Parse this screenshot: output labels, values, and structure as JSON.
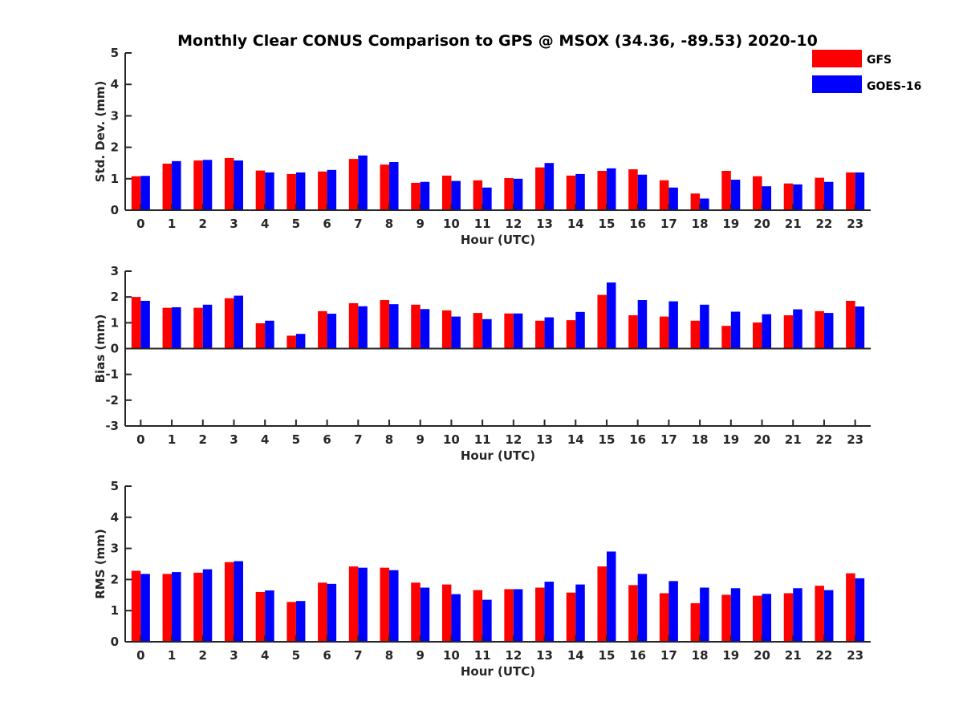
{
  "title": "Monthly Clear CONUS Comparison to GPS @ MSOX (34.36, -89.53) 2020-10",
  "colors": {
    "GFS": "#ff0000",
    "GOES-16": "#0000ff",
    "axis": "#262626"
  },
  "legend": {
    "placement": "top-right",
    "entries": [
      "GFS",
      "GOES-16"
    ]
  },
  "chart_data": [
    {
      "type": "bar",
      "xlabel": "Hour (UTC)",
      "ylabel": "Std. Dev. (mm)",
      "ylim": [
        0,
        5
      ],
      "yticks": [
        0,
        1,
        2,
        3,
        4,
        5
      ],
      "categories": [
        "0",
        "1",
        "2",
        "3",
        "4",
        "5",
        "6",
        "7",
        "8",
        "9",
        "10",
        "11",
        "12",
        "13",
        "14",
        "15",
        "16",
        "17",
        "18",
        "19",
        "20",
        "21",
        "22",
        "23"
      ],
      "series": [
        {
          "name": "GFS",
          "values": [
            1.08,
            1.48,
            1.58,
            1.66,
            1.26,
            1.15,
            1.23,
            1.63,
            1.45,
            0.87,
            1.1,
            0.95,
            1.02,
            1.36,
            1.1,
            1.25,
            1.3,
            0.95,
            0.53,
            1.25,
            1.08,
            0.85,
            1.03,
            1.2
          ]
        },
        {
          "name": "GOES-16",
          "values": [
            1.09,
            1.56,
            1.6,
            1.58,
            1.2,
            1.2,
            1.28,
            1.74,
            1.53,
            0.9,
            0.93,
            0.72,
            1.0,
            1.5,
            1.15,
            1.33,
            1.13,
            0.72,
            0.37,
            0.97,
            0.76,
            0.82,
            0.9,
            1.2
          ]
        }
      ]
    },
    {
      "type": "bar",
      "xlabel": "Hour (UTC)",
      "ylabel": "Bias (mm)",
      "ylim": [
        -3,
        3
      ],
      "yticks": [
        -3,
        -2,
        -1,
        0,
        1,
        2,
        3
      ],
      "categories": [
        "0",
        "1",
        "2",
        "3",
        "4",
        "5",
        "6",
        "7",
        "8",
        "9",
        "10",
        "11",
        "12",
        "13",
        "14",
        "15",
        "16",
        "17",
        "18",
        "19",
        "20",
        "21",
        "22",
        "23"
      ],
      "series": [
        {
          "name": "GFS",
          "values": [
            2.0,
            1.58,
            1.58,
            1.95,
            0.98,
            0.5,
            1.45,
            1.76,
            1.88,
            1.7,
            1.48,
            1.38,
            1.36,
            1.08,
            1.1,
            2.08,
            1.29,
            1.24,
            1.08,
            0.88,
            1.01,
            1.29,
            1.45,
            1.85
          ]
        },
        {
          "name": "GOES-16",
          "values": [
            1.85,
            1.6,
            1.7,
            2.05,
            1.08,
            0.57,
            1.35,
            1.64,
            1.72,
            1.53,
            1.24,
            1.14,
            1.36,
            1.21,
            1.42,
            2.56,
            1.88,
            1.83,
            1.7,
            1.43,
            1.33,
            1.52,
            1.38,
            1.63
          ]
        }
      ]
    },
    {
      "type": "bar",
      "xlabel": "Hour (UTC)",
      "ylabel": "RMS (mm)",
      "ylim": [
        0,
        5
      ],
      "yticks": [
        0,
        1,
        2,
        3,
        4,
        5
      ],
      "categories": [
        "0",
        "1",
        "2",
        "3",
        "4",
        "5",
        "6",
        "7",
        "8",
        "9",
        "10",
        "11",
        "12",
        "13",
        "14",
        "15",
        "16",
        "17",
        "18",
        "19",
        "20",
        "21",
        "22",
        "23"
      ],
      "series": [
        {
          "name": "GFS",
          "values": [
            2.28,
            2.18,
            2.22,
            2.56,
            1.6,
            1.28,
            1.9,
            2.42,
            2.38,
            1.9,
            1.84,
            1.66,
            1.69,
            1.74,
            1.58,
            2.42,
            1.82,
            1.56,
            1.24,
            1.51,
            1.48,
            1.56,
            1.8,
            2.2
          ]
        },
        {
          "name": "GOES-16",
          "values": [
            2.18,
            2.24,
            2.33,
            2.59,
            1.65,
            1.31,
            1.86,
            2.38,
            2.3,
            1.74,
            1.53,
            1.35,
            1.69,
            1.93,
            1.84,
            2.9,
            2.18,
            1.95,
            1.74,
            1.72,
            1.54,
            1.72,
            1.66,
            2.04
          ]
        }
      ]
    }
  ]
}
